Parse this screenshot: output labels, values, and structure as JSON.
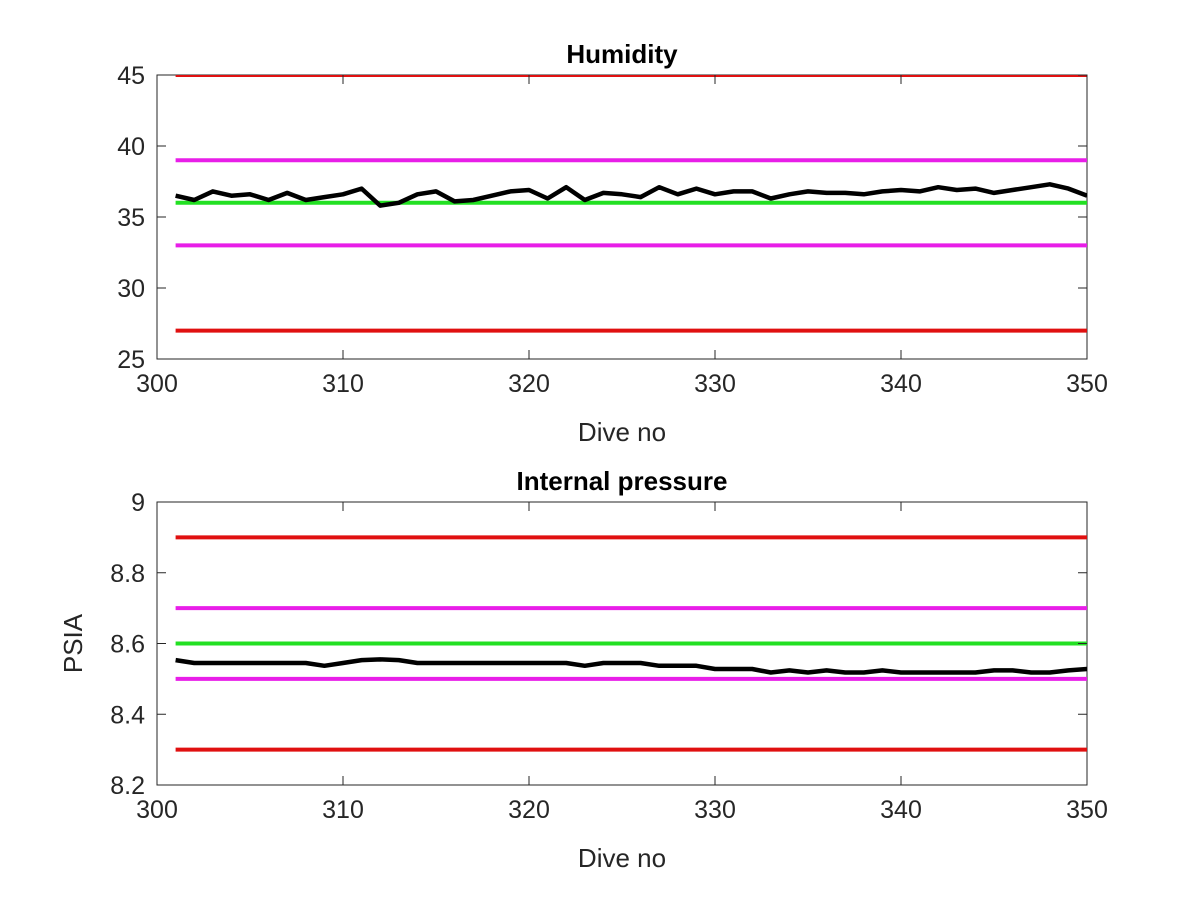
{
  "chart_data": [
    {
      "type": "line",
      "title": "Humidity",
      "xlabel": "Dive no",
      "ylabel": "",
      "xlim": [
        300,
        350
      ],
      "ylim": [
        25,
        45
      ],
      "xticks": [
        300,
        310,
        320,
        330,
        340,
        350
      ],
      "xtick_labels": [
        "300",
        "310",
        "320",
        "330",
        "340",
        "350"
      ],
      "yticks": [
        25,
        30,
        35,
        40,
        45
      ],
      "ytick_labels": [
        "25",
        "30",
        "35",
        "40",
        "45"
      ],
      "grid": false,
      "legend": "none",
      "reference_lines": [
        {
          "y": 45,
          "color": "#e01010"
        },
        {
          "y": 39,
          "color": "#e81ee8"
        },
        {
          "y": 36,
          "color": "#22e022"
        },
        {
          "y": 33,
          "color": "#e81ee8"
        },
        {
          "y": 27,
          "color": "#e01010"
        }
      ],
      "series": [
        {
          "color": "#000000",
          "x": [
            301,
            302,
            303,
            304,
            305,
            306,
            307,
            308,
            309,
            310,
            311,
            312,
            313,
            314,
            315,
            316,
            317,
            318,
            319,
            320,
            321,
            322,
            323,
            324,
            325,
            326,
            327,
            328,
            329,
            330,
            331,
            332,
            333,
            334,
            335,
            336,
            337,
            338,
            339,
            340,
            341,
            342,
            343,
            344,
            345,
            346,
            347,
            348,
            349,
            350
          ],
          "values": [
            36.5,
            36.2,
            36.8,
            36.5,
            36.6,
            36.2,
            36.7,
            36.2,
            36.4,
            36.6,
            37.0,
            35.8,
            36.0,
            36.6,
            36.8,
            36.1,
            36.2,
            36.5,
            36.8,
            36.9,
            36.3,
            37.1,
            36.2,
            36.7,
            36.6,
            36.4,
            37.1,
            36.6,
            37.0,
            36.6,
            36.8,
            36.8,
            36.3,
            36.6,
            36.8,
            36.7,
            36.7,
            36.6,
            36.8,
            36.9,
            36.8,
            37.1,
            36.9,
            37.0,
            36.7,
            36.9,
            37.1,
            37.3,
            37.0,
            36.5
          ]
        }
      ]
    },
    {
      "type": "line",
      "title": "Internal pressure",
      "xlabel": "Dive no",
      "ylabel": "PSIA",
      "xlim": [
        300,
        350
      ],
      "ylim": [
        8.2,
        9
      ],
      "xticks": [
        300,
        310,
        320,
        330,
        340,
        350
      ],
      "xtick_labels": [
        "300",
        "310",
        "320",
        "330",
        "340",
        "350"
      ],
      "yticks": [
        8.2,
        8.4,
        8.6,
        8.8,
        9
      ],
      "ytick_labels": [
        "8.2",
        "8.4",
        "8.6",
        "8.8",
        "9"
      ],
      "grid": false,
      "legend": "none",
      "reference_lines": [
        {
          "y": 8.9,
          "color": "#e01010"
        },
        {
          "y": 8.7,
          "color": "#e81ee8"
        },
        {
          "y": 8.6,
          "color": "#22e022"
        },
        {
          "y": 8.5,
          "color": "#e81ee8"
        },
        {
          "y": 8.3,
          "color": "#e01010"
        }
      ],
      "series": [
        {
          "color": "#000000",
          "x": [
            301,
            302,
            303,
            304,
            305,
            306,
            307,
            308,
            309,
            310,
            311,
            312,
            313,
            314,
            315,
            316,
            317,
            318,
            319,
            320,
            321,
            322,
            323,
            324,
            325,
            326,
            327,
            328,
            329,
            330,
            331,
            332,
            333,
            334,
            335,
            336,
            337,
            338,
            339,
            340,
            341,
            342,
            343,
            344,
            345,
            346,
            347,
            348,
            349,
            350
          ],
          "values": [
            8.553,
            8.545,
            8.545,
            8.545,
            8.545,
            8.545,
            8.545,
            8.545,
            8.537,
            8.545,
            8.553,
            8.555,
            8.553,
            8.545,
            8.545,
            8.545,
            8.545,
            8.545,
            8.545,
            8.545,
            8.545,
            8.545,
            8.537,
            8.545,
            8.545,
            8.545,
            8.537,
            8.537,
            8.537,
            8.528,
            8.528,
            8.528,
            8.518,
            8.524,
            8.518,
            8.524,
            8.518,
            8.518,
            8.524,
            8.518,
            8.518,
            8.518,
            8.518,
            8.518,
            8.524,
            8.524,
            8.518,
            8.518,
            8.524,
            8.528
          ]
        }
      ]
    }
  ]
}
